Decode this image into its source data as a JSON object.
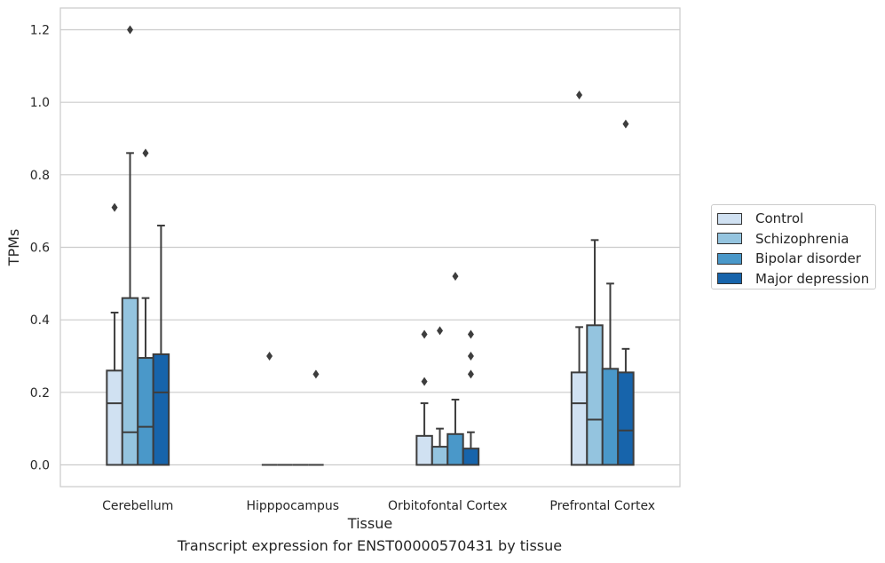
{
  "chart_data": {
    "type": "box",
    "title": "Transcript expression for ENST00000570431 by tissue",
    "xlabel": "Tissue",
    "ylabel": "TPMs",
    "ylim": [
      -0.06,
      1.26
    ],
    "yticks": [
      "0.0",
      "0.2",
      "0.4",
      "0.6",
      "0.8",
      "1.0",
      "1.2"
    ],
    "grid": true,
    "legend_position": "right",
    "categories": [
      "Cerebellum",
      "Hipppocampus",
      "Orbitofontal Cortex",
      "Prefrontal Cortex"
    ],
    "series": [
      {
        "name": "Control",
        "color": "#d0e1f2",
        "boxes": [
          {
            "whislo": 0.0,
            "q1": 0.0,
            "med": 0.17,
            "q3": 0.26,
            "whishi": 0.42,
            "fliers": [
              0.71
            ]
          },
          {
            "whislo": 0.0,
            "q1": 0.0,
            "med": 0.0,
            "q3": 0.0,
            "whishi": 0.0,
            "fliers": [
              0.3
            ]
          },
          {
            "whislo": 0.0,
            "q1": 0.0,
            "med": 0.0,
            "q3": 0.08,
            "whishi": 0.17,
            "fliers": [
              0.23,
              0.36
            ]
          },
          {
            "whislo": 0.0,
            "q1": 0.0,
            "med": 0.17,
            "q3": 0.255,
            "whishi": 0.38,
            "fliers": [
              1.02
            ]
          }
        ]
      },
      {
        "name": "Schizophrenia",
        "color": "#94c4df",
        "boxes": [
          {
            "whislo": 0.0,
            "q1": 0.0,
            "med": 0.09,
            "q3": 0.46,
            "whishi": 0.86,
            "fliers": [
              1.2
            ]
          },
          {
            "whislo": 0.0,
            "q1": 0.0,
            "med": 0.0,
            "q3": 0.0,
            "whishi": 0.0,
            "fliers": []
          },
          {
            "whislo": 0.0,
            "q1": 0.0,
            "med": 0.0,
            "q3": 0.05,
            "whishi": 0.1,
            "fliers": [
              0.37
            ]
          },
          {
            "whislo": 0.0,
            "q1": 0.0,
            "med": 0.125,
            "q3": 0.385,
            "whishi": 0.62,
            "fliers": []
          }
        ]
      },
      {
        "name": "Bipolar disorder",
        "color": "#4a98c9",
        "boxes": [
          {
            "whislo": 0.0,
            "q1": 0.0,
            "med": 0.105,
            "q3": 0.295,
            "whishi": 0.46,
            "fliers": [
              0.86
            ]
          },
          {
            "whislo": 0.0,
            "q1": 0.0,
            "med": 0.0,
            "q3": 0.0,
            "whishi": 0.0,
            "fliers": []
          },
          {
            "whislo": 0.0,
            "q1": 0.0,
            "med": 0.0,
            "q3": 0.085,
            "whishi": 0.18,
            "fliers": [
              0.52
            ]
          },
          {
            "whislo": 0.0,
            "q1": 0.0,
            "med": 0.0,
            "q3": 0.265,
            "whishi": 0.5,
            "fliers": []
          }
        ]
      },
      {
        "name": "Major depression",
        "color": "#1764ab",
        "boxes": [
          {
            "whislo": 0.0,
            "q1": 0.0,
            "med": 0.2,
            "q3": 0.305,
            "whishi": 0.66,
            "fliers": []
          },
          {
            "whislo": 0.0,
            "q1": 0.0,
            "med": 0.0,
            "q3": 0.0,
            "whishi": 0.0,
            "fliers": [
              0.25
            ]
          },
          {
            "whislo": 0.0,
            "q1": 0.0,
            "med": 0.0,
            "q3": 0.045,
            "whishi": 0.09,
            "fliers": [
              0.25,
              0.3,
              0.36
            ]
          },
          {
            "whislo": 0.0,
            "q1": 0.0,
            "med": 0.095,
            "q3": 0.255,
            "whishi": 0.32,
            "fliers": [
              0.94
            ]
          }
        ]
      }
    ]
  }
}
